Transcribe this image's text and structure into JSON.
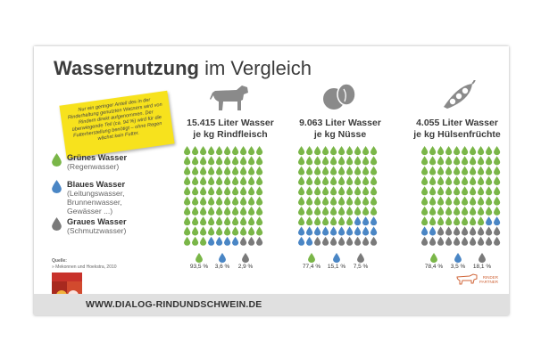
{
  "title": {
    "bold": "Wassernutzung",
    "light": "im Vergleich"
  },
  "note": "Nur ein geringer Anteil des in der Rinderhaltung genutzten Wassers wird von Rindern direkt aufgenommen. Der überwiegende Teil (ca. 94 %) wird für die Futterherstellung benötigt – ohne Regen wächst kein Futter.",
  "legend": [
    {
      "label": "Grünes Wasser",
      "sub": "(Regenwasser)",
      "color": "#7ab648"
    },
    {
      "label": "Blaues Wasser",
      "sub": "(Leitungswasser, Brunnenwasser, Gewässer ...)",
      "color": "#4a86c5"
    },
    {
      "label": "Graues Wasser",
      "sub": "(Schmutzwasser)",
      "color": "#7a7a7a"
    }
  ],
  "source": {
    "label": "Quelle:",
    "text": "» Mekonnen und Hoekstra, 2010"
  },
  "columns": [
    {
      "icon": "cow-icon",
      "line1": "15.415 Liter Wasser",
      "line2": "je kg Rindfleisch",
      "drops": {
        "green": 93,
        "blue": 4,
        "grey": 3
      },
      "shares": [
        "93,5 %",
        "3,6 %",
        "2,9 %"
      ]
    },
    {
      "icon": "nuts-icon",
      "line1": "9.063 Liter Wasser",
      "line2": "je kg Nüsse",
      "drops": {
        "green": 77,
        "blue": 15,
        "grey": 8
      },
      "shares": [
        "77,4 %",
        "15,1 %",
        "7,5 %"
      ]
    },
    {
      "icon": "pea-pod-icon",
      "line1": "4.055 Liter Wasser",
      "line2": "je kg Hülsenfrüchte",
      "drops": {
        "green": 78,
        "blue": 4,
        "grey": 18
      },
      "shares": [
        "78,4 %",
        "3,5 %",
        "18,1 %"
      ]
    }
  ],
  "colors": {
    "green": "#7ab648",
    "blue": "#4a86c5",
    "grey": "#7a7a7a"
  },
  "footer": {
    "url": "WWW.DIALOG-RINDUNDSCHWEIN.DE"
  },
  "partner": {
    "line1": "RINDER",
    "line2": "PARTNER"
  }
}
